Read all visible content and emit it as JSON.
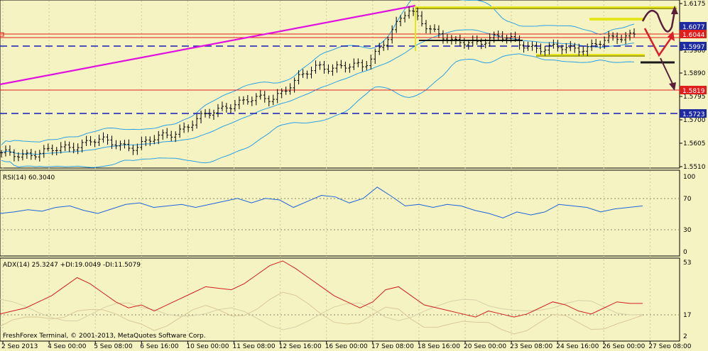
{
  "colors": {
    "background": "#f6f3c2",
    "grid": "#cfcc9a",
    "candle": "#000000",
    "bollinger": "#2aa0e6",
    "trendline": "#e010e0",
    "hline_red": "#e41e1e",
    "hline_blue": "#1a1ab4",
    "zone_yellow": "#e6e61e",
    "forecast_dark": "#5a1e3c",
    "forecast_red": "#dc1e28",
    "rsi_line": "#1e64dc",
    "adx_line": "#d21e1e",
    "tag_blue_bg": "#1e2aa0",
    "tag_red_bg": "#e01e1e"
  },
  "main": {
    "price_ticks": [
      "1.6175",
      "1.5980",
      "1.5890",
      "1.5795",
      "1.5700",
      "1.5605",
      "1.5510"
    ],
    "price_tags": [
      {
        "label": "1.6077",
        "kind": "blue"
      },
      {
        "label": "1.6044",
        "kind": "red"
      },
      {
        "label": "1.5997",
        "kind": "blue"
      },
      {
        "label": "1.5819",
        "kind": "red"
      },
      {
        "label": "1.5723",
        "kind": "blue"
      }
    ]
  },
  "rsi": {
    "title": "RSI(14) 60.3040",
    "ticks": [
      "100",
      "70",
      "30",
      "0"
    ]
  },
  "adx": {
    "title": "ADX(14) 25.3247 +DI:19.0049 -DI:11.5079",
    "ticks": [
      "53",
      "17",
      "2"
    ]
  },
  "footer": {
    "copyright": "FreshForex Terminal, © 2001-2013, MetaQuotes Software Corp."
  },
  "time_axis": [
    "2 Sep 2013",
    "4 Sep 00:00",
    "5 Sep 08:00",
    "6 Sep 16:00",
    "10 Sep 00:00",
    "11 Sep 08:00",
    "12 Sep 16:00",
    "16 Sep 00:00",
    "17 Sep 08:00",
    "18 Sep 16:00",
    "20 Sep 00:00",
    "23 Sep 08:00",
    "24 Sep 16:00",
    "26 Sep 00:00",
    "27 Sep 08:00"
  ],
  "chart_data": [
    {
      "type": "candlestick",
      "title": "",
      "ylim": [
        1.5495,
        1.6195
      ],
      "x": [
        "2 Sep 2013",
        "4 Sep 00:00",
        "5 Sep 08:00",
        "6 Sep 16:00",
        "10 Sep 00:00",
        "11 Sep 08:00",
        "12 Sep 16:00",
        "16 Sep 00:00",
        "17 Sep 08:00",
        "18 Sep 16:00",
        "20 Sep 00:00",
        "23 Sep 08:00",
        "24 Sep 16:00",
        "26 Sep 00:00",
        "27 Sep 08:00"
      ],
      "price_close": [
        1.555,
        1.556,
        1.561,
        1.5585,
        1.566,
        1.576,
        1.579,
        1.592,
        1.5915,
        1.615,
        1.601,
        1.604,
        1.599,
        1.6,
        1.606
      ],
      "horizontal_levels": [
        1.6175,
        1.6077,
        1.6044,
        1.5997,
        1.5819,
        1.5723
      ],
      "indicator": "Bollinger Bands"
    },
    {
      "type": "line",
      "title": "RSI(14) 60.3040",
      "ylim": [
        0,
        100
      ],
      "levels": [
        70,
        30
      ],
      "values": [
        50,
        52,
        55,
        53,
        58,
        60,
        54,
        50,
        56,
        62,
        64,
        58,
        60,
        62,
        58,
        62,
        66,
        70,
        64,
        70,
        68,
        58,
        66,
        74,
        72,
        64,
        70,
        85,
        73,
        60,
        62,
        58,
        62,
        60,
        54,
        50,
        44,
        52,
        48,
        52,
        62,
        60,
        58,
        52,
        56,
        58,
        60
      ]
    },
    {
      "type": "line",
      "title": "ADX(14) 25.3247 +DI:19.0049 -DI:11.5079",
      "ylim": [
        2,
        53
      ],
      "levels": [
        17
      ],
      "values": [
        18,
        20,
        22,
        26,
        30,
        36,
        42,
        38,
        32,
        26,
        22,
        24,
        20,
        24,
        28,
        32,
        36,
        35,
        34,
        38,
        44,
        50,
        53,
        48,
        42,
        36,
        30,
        26,
        22,
        26,
        34,
        36,
        30,
        24,
        22,
        20,
        18,
        16,
        20,
        18,
        16,
        18,
        22,
        26,
        24,
        20,
        18,
        22,
        26,
        25,
        25
      ]
    }
  ]
}
